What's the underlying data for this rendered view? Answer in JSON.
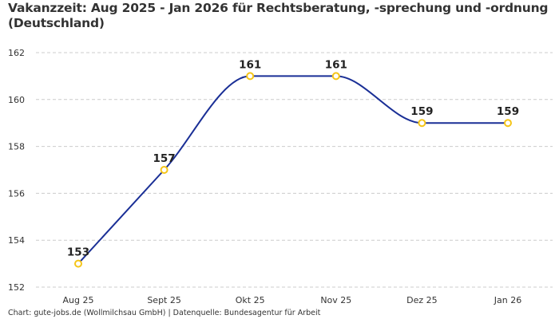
{
  "chart_data": {
    "type": "line",
    "title": "Vakanzzeit: Aug 2025 - Jan 2026 für Rechtsberatung, -sprechung und -ordnung (Deutschland)",
    "categories": [
      "Aug 25",
      "Sept 25",
      "Okt 25",
      "Nov 25",
      "Dez 25",
      "Jan 26"
    ],
    "values": [
      153,
      157,
      161,
      161,
      159,
      159
    ],
    "ylim": [
      152,
      162
    ],
    "yticks": [
      152,
      154,
      156,
      158,
      160,
      162
    ],
    "grid": true,
    "line_color": "#1a2f96",
    "marker_color": "#f5c518",
    "xlabel": "",
    "ylabel": ""
  },
  "footer": "Chart: gute-jobs.de (Wollmilchsau GmbH) | Datenquelle: Bundesagentur für Arbeit"
}
